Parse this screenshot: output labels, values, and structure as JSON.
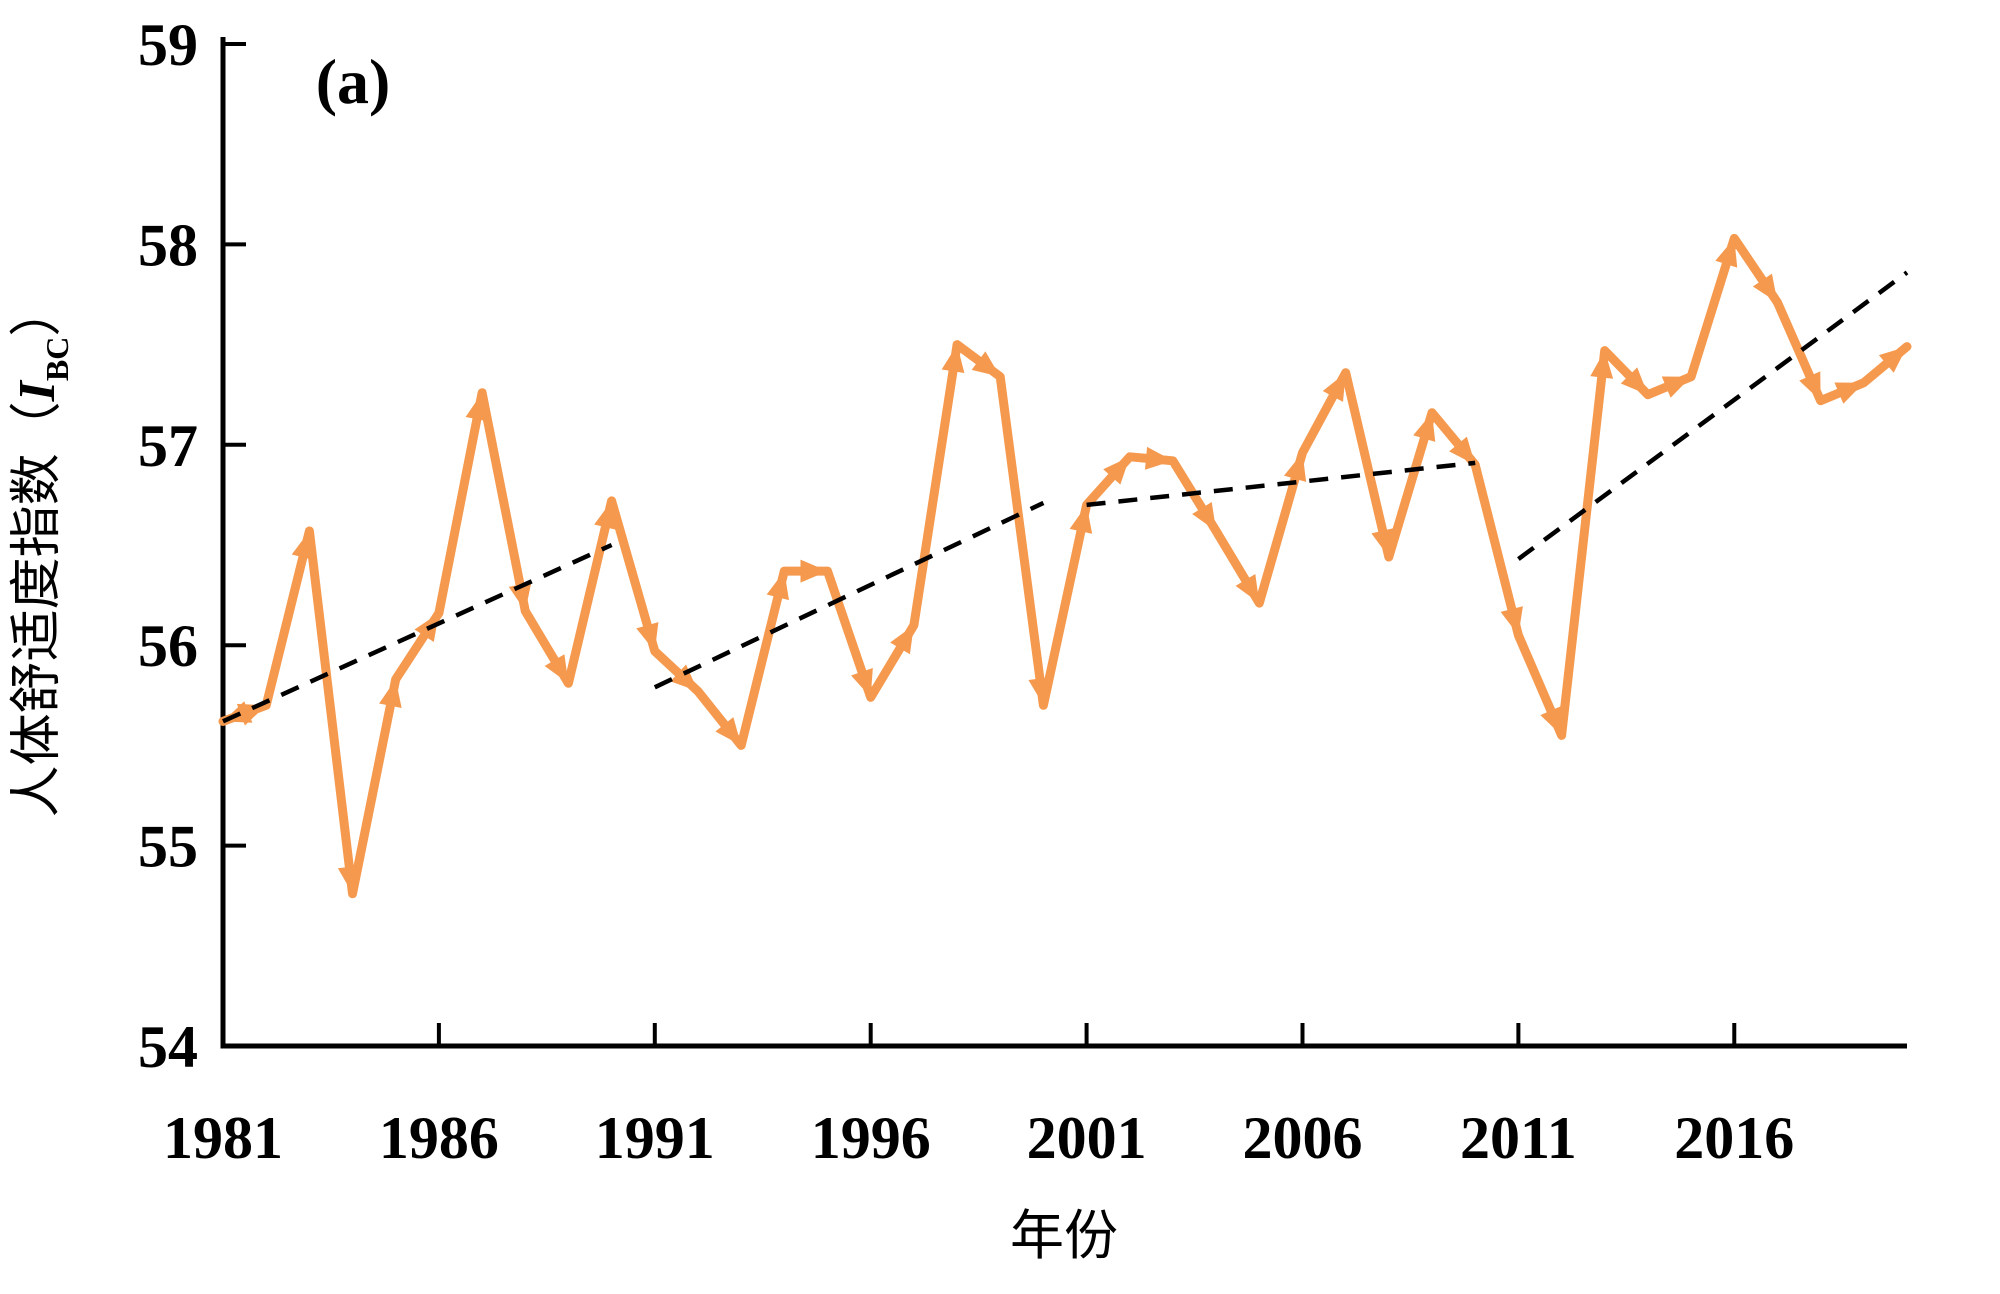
{
  "figure": {
    "panel_label": "(a)",
    "background": "#ffffff",
    "axis_color": "#000000",
    "series_color": "#F5994E",
    "trend_color": "#000000",
    "x_axis": {
      "title": "年份",
      "tick_labels": [
        "1981",
        "1986",
        "1991",
        "1996",
        "2001",
        "2006",
        "2011",
        "2016"
      ],
      "tick_years": [
        1981,
        1986,
        1991,
        1996,
        2001,
        2006,
        2011,
        2016
      ]
    },
    "y_axis": {
      "title_prefix": "人体舒适度指数（",
      "title_symbol": "I",
      "title_subscript": "BC",
      "title_suffix": "）",
      "tick_labels": [
        "54",
        "55",
        "56",
        "57",
        "58",
        "59"
      ],
      "tick_values": [
        54,
        55,
        56,
        57,
        58,
        59
      ]
    }
  },
  "chart_data": {
    "type": "line",
    "title": "(a)",
    "xlabel": "年份",
    "ylabel": "人体舒适度指数（IBC）",
    "xlim": [
      1981,
      2020
    ],
    "ylim": [
      54,
      59
    ],
    "grid": false,
    "legend": false,
    "marker_style": "directional-triangle",
    "x": [
      1981,
      1982,
      1983,
      1984,
      1985,
      1986,
      1987,
      1988,
      1989,
      1990,
      1991,
      1992,
      1993,
      1994,
      1995,
      1996,
      1997,
      1998,
      1999,
      2000,
      2001,
      2002,
      2003,
      2004,
      2005,
      2006,
      2007,
      2008,
      2009,
      2010,
      2011,
      2012,
      2013,
      2014,
      2015,
      2016,
      2017,
      2018,
      2019,
      2020
    ],
    "series": [
      {
        "name": "人体舒适度指数",
        "color": "#F5994E",
        "values": [
          55.62,
          55.7,
          56.57,
          54.76,
          55.83,
          56.16,
          57.26,
          56.17,
          55.81,
          56.72,
          55.97,
          55.77,
          55.5,
          56.37,
          56.37,
          55.74,
          56.1,
          57.5,
          57.34,
          55.7,
          56.7,
          56.94,
          56.92,
          56.57,
          56.21,
          56.96,
          57.36,
          56.44,
          57.16,
          56.9,
          56.05,
          55.55,
          57.47,
          57.25,
          57.34,
          58.03,
          57.71,
          57.22,
          57.31,
          57.49
        ]
      }
    ],
    "trend_lines": [
      {
        "name": "trend-1981-1990",
        "style": "dashed",
        "x1": 1981,
        "y1": 55.62,
        "x2": 1990,
        "y2": 56.5
      },
      {
        "name": "trend-1991-2000",
        "style": "dashed",
        "x1": 1991,
        "y1": 55.79,
        "x2": 2000,
        "y2": 56.71
      },
      {
        "name": "trend-2001-2010",
        "style": "dashed",
        "x1": 2001,
        "y1": 56.7,
        "x2": 2010,
        "y2": 56.91
      },
      {
        "name": "trend-2011-2020",
        "style": "dashed",
        "x1": 2011,
        "y1": 56.43,
        "x2": 2020,
        "y2": 57.86
      }
    ]
  }
}
